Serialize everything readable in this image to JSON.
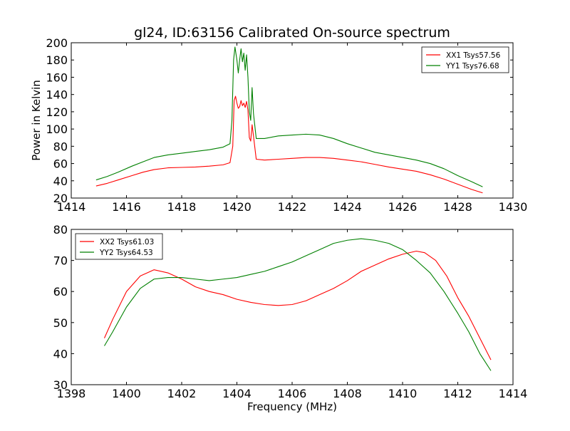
{
  "chart_data": [
    {
      "type": "line",
      "title": "gl24, ID:63156 Calibrated On-source spectrum",
      "xlabel": "",
      "ylabel": "Power in Kelvin",
      "xlim": [
        1414,
        1430
      ],
      "ylim": [
        20,
        200
      ],
      "xticks": [
        1414,
        1416,
        1418,
        1420,
        1422,
        1424,
        1426,
        1428,
        1430
      ],
      "yticks": [
        20,
        40,
        60,
        80,
        100,
        120,
        140,
        160,
        180,
        200
      ],
      "grid": false,
      "legend_position": "top-right",
      "series": [
        {
          "name": "XX1 Tsys57.56",
          "color": "#ff0000",
          "points": [
            [
              1414.9,
              34
            ],
            [
              1415.3,
              37
            ],
            [
              1415.7,
              41
            ],
            [
              1416.2,
              46
            ],
            [
              1416.6,
              50
            ],
            [
              1417.0,
              53
            ],
            [
              1417.5,
              55
            ],
            [
              1418.0,
              55.5
            ],
            [
              1418.5,
              56
            ],
            [
              1419.0,
              57
            ],
            [
              1419.5,
              58.5
            ],
            [
              1419.75,
              61
            ],
            [
              1419.85,
              80
            ],
            [
              1419.9,
              133
            ],
            [
              1419.95,
              138
            ],
            [
              1420.0,
              130
            ],
            [
              1420.05,
              124
            ],
            [
              1420.1,
              126
            ],
            [
              1420.15,
              133
            ],
            [
              1420.2,
              127
            ],
            [
              1420.25,
              130
            ],
            [
              1420.3,
              125
            ],
            [
              1420.35,
              132
            ],
            [
              1420.4,
              122
            ],
            [
              1420.45,
              90
            ],
            [
              1420.5,
              86
            ],
            [
              1420.55,
              105
            ],
            [
              1420.6,
              92
            ],
            [
              1420.7,
              65
            ],
            [
              1421.0,
              64
            ],
            [
              1421.5,
              65
            ],
            [
              1422.0,
              66
            ],
            [
              1422.5,
              67
            ],
            [
              1423.0,
              67
            ],
            [
              1423.5,
              66
            ],
            [
              1424.0,
              64
            ],
            [
              1424.5,
              62
            ],
            [
              1425.0,
              59
            ],
            [
              1425.5,
              56
            ],
            [
              1426.0,
              53.5
            ],
            [
              1426.5,
              51
            ],
            [
              1427.0,
              47
            ],
            [
              1427.5,
              42
            ],
            [
              1428.0,
              36
            ],
            [
              1428.5,
              30
            ],
            [
              1428.9,
              26
            ]
          ]
        },
        {
          "name": "YY1 Tsys76.68",
          "color": "#008000",
          "points": [
            [
              1414.9,
              41
            ],
            [
              1415.3,
              45
            ],
            [
              1415.7,
              50
            ],
            [
              1416.2,
              57
            ],
            [
              1416.6,
              62
            ],
            [
              1417.0,
              67
            ],
            [
              1417.5,
              70
            ],
            [
              1418.0,
              72
            ],
            [
              1418.5,
              74
            ],
            [
              1419.0,
              76
            ],
            [
              1419.5,
              79
            ],
            [
              1419.75,
              83
            ],
            [
              1419.82,
              110
            ],
            [
              1419.88,
              180
            ],
            [
              1419.93,
              195
            ],
            [
              1420.0,
              180
            ],
            [
              1420.05,
              165
            ],
            [
              1420.1,
              180
            ],
            [
              1420.15,
              193
            ],
            [
              1420.2,
              178
            ],
            [
              1420.25,
              188
            ],
            [
              1420.3,
              168
            ],
            [
              1420.35,
              186
            ],
            [
              1420.4,
              160
            ],
            [
              1420.45,
              120
            ],
            [
              1420.5,
              110
            ],
            [
              1420.55,
              148
            ],
            [
              1420.6,
              118
            ],
            [
              1420.7,
              89
            ],
            [
              1421.0,
              89
            ],
            [
              1421.5,
              92
            ],
            [
              1422.0,
              93
            ],
            [
              1422.5,
              94
            ],
            [
              1423.0,
              93
            ],
            [
              1423.5,
              89
            ],
            [
              1424.0,
              83
            ],
            [
              1424.5,
              78
            ],
            [
              1425.0,
              73
            ],
            [
              1425.5,
              70
            ],
            [
              1426.0,
              67
            ],
            [
              1426.5,
              64
            ],
            [
              1427.0,
              60
            ],
            [
              1427.5,
              54
            ],
            [
              1428.0,
              46
            ],
            [
              1428.5,
              39
            ],
            [
              1428.9,
              33
            ]
          ]
        }
      ]
    },
    {
      "type": "line",
      "title": "",
      "xlabel": "Frequency (MHz)",
      "ylabel": "",
      "xlim": [
        1398,
        1414
      ],
      "ylim": [
        30,
        80
      ],
      "xticks": [
        1398,
        1400,
        1402,
        1404,
        1406,
        1408,
        1410,
        1412,
        1414
      ],
      "yticks": [
        30,
        40,
        50,
        60,
        70,
        80
      ],
      "grid": false,
      "legend_position": "top-left",
      "series": [
        {
          "name": "XX2 Tsys61.03",
          "color": "#ff0000",
          "points": [
            [
              1399.2,
              45
            ],
            [
              1399.5,
              51
            ],
            [
              1400.0,
              60
            ],
            [
              1400.5,
              65
            ],
            [
              1401.0,
              67
            ],
            [
              1401.5,
              66
            ],
            [
              1402.0,
              64
            ],
            [
              1402.5,
              61.5
            ],
            [
              1403.0,
              60
            ],
            [
              1403.5,
              59
            ],
            [
              1404.0,
              57.5
            ],
            [
              1404.5,
              56.5
            ],
            [
              1405.0,
              55.8
            ],
            [
              1405.5,
              55.5
            ],
            [
              1406.0,
              55.8
            ],
            [
              1406.5,
              57
            ],
            [
              1407.0,
              59
            ],
            [
              1407.5,
              61
            ],
            [
              1408.0,
              63.5
            ],
            [
              1408.5,
              66.5
            ],
            [
              1409.0,
              68.5
            ],
            [
              1409.5,
              70.5
            ],
            [
              1410.0,
              72
            ],
            [
              1410.5,
              73
            ],
            [
              1410.8,
              72.5
            ],
            [
              1411.2,
              70
            ],
            [
              1411.6,
              65
            ],
            [
              1412.0,
              58
            ],
            [
              1412.4,
              52
            ],
            [
              1412.8,
              45
            ],
            [
              1413.2,
              38
            ]
          ]
        },
        {
          "name": "YY2 Tsys64.53",
          "color": "#008000",
          "points": [
            [
              1399.2,
              42.5
            ],
            [
              1399.5,
              47
            ],
            [
              1400.0,
              55
            ],
            [
              1400.5,
              61
            ],
            [
              1401.0,
              64
            ],
            [
              1401.5,
              64.5
            ],
            [
              1402.0,
              64.5
            ],
            [
              1402.5,
              64
            ],
            [
              1403.0,
              63.5
            ],
            [
              1403.5,
              64
            ],
            [
              1404.0,
              64.5
            ],
            [
              1404.5,
              65.5
            ],
            [
              1405.0,
              66.5
            ],
            [
              1405.5,
              68
            ],
            [
              1406.0,
              69.5
            ],
            [
              1406.5,
              71.5
            ],
            [
              1407.0,
              73.5
            ],
            [
              1407.5,
              75.5
            ],
            [
              1408.0,
              76.5
            ],
            [
              1408.5,
              77
            ],
            [
              1409.0,
              76.5
            ],
            [
              1409.5,
              75.5
            ],
            [
              1410.0,
              73.5
            ],
            [
              1410.5,
              70
            ],
            [
              1411.0,
              66
            ],
            [
              1411.5,
              60
            ],
            [
              1412.0,
              53
            ],
            [
              1412.4,
              47
            ],
            [
              1412.8,
              40
            ],
            [
              1413.2,
              34.5
            ]
          ]
        }
      ]
    }
  ]
}
